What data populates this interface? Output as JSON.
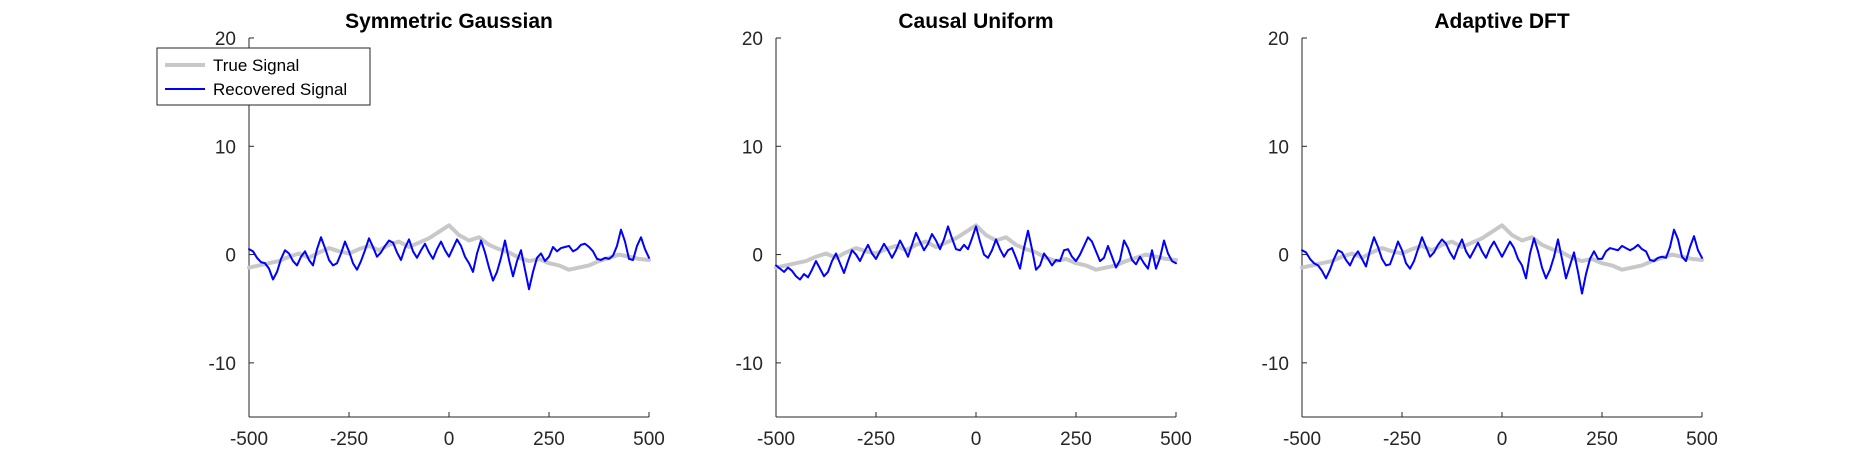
{
  "chart_data": [
    {
      "type": "line",
      "title": "Symmetric Gaussian",
      "xlim": [
        -500,
        500
      ],
      "ylim": [
        -15,
        20
      ],
      "xticks": [
        -500,
        -250,
        0,
        250,
        500
      ],
      "yticks": [
        -10,
        0,
        10,
        20
      ],
      "grid": false,
      "legend": "top-left",
      "series": [
        {
          "name": "True Signal",
          "color": "#c8c8c8",
          "x": [
            -500,
            -475,
            -450,
            -425,
            -400,
            -375,
            -350,
            -325,
            -300,
            -275,
            -250,
            -225,
            -200,
            -175,
            -150,
            -125,
            -100,
            -75,
            -50,
            -25,
            0,
            25,
            50,
            75,
            100,
            125,
            150,
            175,
            200,
            225,
            250,
            275,
            300,
            325,
            350,
            375,
            400,
            425,
            450,
            475,
            500
          ],
          "y": [
            -1.2,
            -1.0,
            -0.8,
            -0.6,
            -0.2,
            0.1,
            -0.3,
            0.2,
            0.6,
            0.3,
            0.1,
            0.5,
            0.8,
            0.4,
            0.9,
            1.2,
            0.7,
            1.1,
            1.5,
            2.1,
            2.7,
            1.8,
            1.3,
            1.6,
            0.9,
            0.5,
            0.2,
            -0.3,
            -0.6,
            -0.4,
            -0.8,
            -1.0,
            -1.4,
            -1.2,
            -1.0,
            -0.6,
            -0.3,
            0.0,
            -0.2,
            -0.4,
            -0.5
          ]
        },
        {
          "name": "Recovered Signal",
          "color": "#0000ff",
          "x": [
            -500,
            -490,
            -480,
            -470,
            -460,
            -450,
            -440,
            -430,
            -420,
            -410,
            -400,
            -390,
            -380,
            -370,
            -360,
            -350,
            -340,
            -330,
            -320,
            -310,
            -300,
            -290,
            -280,
            -270,
            -260,
            -250,
            -240,
            -230,
            -220,
            -210,
            -200,
            -190,
            -180,
            -170,
            -160,
            -150,
            -140,
            -130,
            -120,
            -110,
            -100,
            -90,
            -80,
            -70,
            -60,
            -50,
            -40,
            -30,
            -20,
            -10,
            0,
            10,
            20,
            30,
            40,
            50,
            60,
            70,
            80,
            90,
            100,
            110,
            120,
            130,
            140,
            150,
            160,
            170,
            180,
            190,
            200,
            210,
            220,
            230,
            240,
            250,
            260,
            270,
            280,
            290,
            300,
            310,
            320,
            330,
            340,
            350,
            360,
            370,
            380,
            390,
            400,
            410,
            420,
            430,
            440,
            450,
            460,
            470,
            480,
            490,
            500
          ],
          "y": [
            0.5,
            0.3,
            -0.3,
            -0.7,
            -0.8,
            -1.3,
            -2.3,
            -1.6,
            -0.4,
            0.4,
            0.1,
            -0.6,
            -1.0,
            -0.2,
            0.3,
            -0.5,
            -1.0,
            0.5,
            1.6,
            0.6,
            -0.5,
            -1.0,
            -0.8,
            0.1,
            1.2,
            0.3,
            -0.8,
            -1.4,
            -0.6,
            0.4,
            1.5,
            0.7,
            -0.2,
            0.2,
            0.8,
            1.3,
            1.1,
            0.2,
            -0.5,
            0.6,
            1.4,
            0.3,
            -0.3,
            0.4,
            1.0,
            0.2,
            -0.4,
            0.5,
            1.2,
            0.4,
            -0.2,
            0.6,
            1.4,
            0.8,
            -0.2,
            -0.8,
            -1.6,
            0.1,
            1.3,
            0.2,
            -1.2,
            -2.4,
            -1.6,
            -0.3,
            1.3,
            -0.5,
            -2.0,
            -0.6,
            0.4,
            -1.4,
            -3.2,
            -1.6,
            -0.3,
            0.1,
            -0.6,
            -0.2,
            0.7,
            0.3,
            0.6,
            0.7,
            0.8,
            0.3,
            0.5,
            0.9,
            1.0,
            0.7,
            0.3,
            -0.4,
            -0.5,
            -0.3,
            -0.4,
            -0.1,
            0.8,
            2.3,
            1.2,
            -0.4,
            -0.5,
            0.8,
            1.6,
            0.5,
            -0.3
          ]
        }
      ]
    },
    {
      "type": "line",
      "title": "Causal Uniform",
      "xlim": [
        -500,
        500
      ],
      "ylim": [
        -15,
        20
      ],
      "xticks": [
        -500,
        -250,
        0,
        250,
        500
      ],
      "yticks": [
        -10,
        0,
        10,
        20
      ],
      "grid": false,
      "series": [
        {
          "name": "True Signal",
          "color": "#c8c8c8",
          "x": [
            -500,
            -475,
            -450,
            -425,
            -400,
            -375,
            -350,
            -325,
            -300,
            -275,
            -250,
            -225,
            -200,
            -175,
            -150,
            -125,
            -100,
            -75,
            -50,
            -25,
            0,
            25,
            50,
            75,
            100,
            125,
            150,
            175,
            200,
            225,
            250,
            275,
            300,
            325,
            350,
            375,
            400,
            425,
            450,
            475,
            500
          ],
          "y": [
            -1.2,
            -1.0,
            -0.8,
            -0.6,
            -0.2,
            0.1,
            -0.3,
            0.2,
            0.6,
            0.3,
            0.1,
            0.5,
            0.8,
            0.4,
            0.9,
            1.2,
            0.7,
            1.1,
            1.5,
            2.1,
            2.7,
            1.8,
            1.3,
            1.6,
            0.9,
            0.5,
            0.2,
            -0.3,
            -0.6,
            -0.4,
            -0.8,
            -1.0,
            -1.4,
            -1.2,
            -1.0,
            -0.6,
            -0.3,
            0.0,
            -0.2,
            -0.4,
            -0.5
          ]
        },
        {
          "name": "Recovered Signal",
          "color": "#0000ff",
          "x": [
            -500,
            -490,
            -480,
            -470,
            -460,
            -450,
            -440,
            -430,
            -420,
            -410,
            -400,
            -390,
            -380,
            -370,
            -360,
            -350,
            -340,
            -330,
            -320,
            -310,
            -300,
            -290,
            -280,
            -270,
            -260,
            -250,
            -240,
            -230,
            -220,
            -210,
            -200,
            -190,
            -180,
            -170,
            -160,
            -150,
            -140,
            -130,
            -120,
            -110,
            -100,
            -90,
            -80,
            -70,
            -60,
            -50,
            -40,
            -30,
            -20,
            -10,
            0,
            10,
            20,
            30,
            40,
            50,
            60,
            70,
            80,
            90,
            100,
            110,
            120,
            130,
            140,
            150,
            160,
            170,
            180,
            190,
            200,
            210,
            220,
            230,
            240,
            250,
            260,
            270,
            280,
            290,
            300,
            310,
            320,
            330,
            340,
            350,
            360,
            370,
            380,
            390,
            400,
            410,
            420,
            430,
            440,
            450,
            460,
            470,
            480,
            490,
            500
          ],
          "y": [
            -1.0,
            -1.3,
            -1.6,
            -1.2,
            -1.5,
            -2.0,
            -2.3,
            -1.8,
            -2.1,
            -1.4,
            -0.6,
            -1.3,
            -2.0,
            -1.6,
            -0.6,
            0.1,
            -0.8,
            -1.7,
            -0.6,
            0.4,
            0.0,
            -0.6,
            0.2,
            0.9,
            0.1,
            -0.4,
            0.3,
            1.0,
            0.4,
            -0.3,
            0.4,
            1.3,
            0.6,
            -0.2,
            0.9,
            2.0,
            1.2,
            0.4,
            1.0,
            1.9,
            1.3,
            0.5,
            1.4,
            2.6,
            1.5,
            0.5,
            0.4,
            0.9,
            0.5,
            1.5,
            2.6,
            1.2,
            0.0,
            -0.3,
            0.4,
            1.4,
            0.5,
            -0.2,
            0.4,
            0.6,
            -0.3,
            -1.3,
            0.6,
            2.2,
            0.5,
            -1.4,
            -1.0,
            0.1,
            -0.4,
            -1.0,
            -0.5,
            -0.6,
            0.4,
            0.5,
            -0.2,
            -0.6,
            0.0,
            0.8,
            1.6,
            1.2,
            0.3,
            -0.6,
            -0.3,
            0.8,
            -0.2,
            -1.2,
            -0.5,
            1.3,
            0.6,
            -0.5,
            -0.9,
            -0.2,
            -0.8,
            -1.3,
            0.4,
            -1.3,
            -0.3,
            1.3,
            0.1,
            -0.6,
            -0.8
          ]
        }
      ]
    },
    {
      "type": "line",
      "title": "Adaptive DFT",
      "xlim": [
        -500,
        500
      ],
      "ylim": [
        -15,
        20
      ],
      "xticks": [
        -500,
        -250,
        0,
        250,
        500
      ],
      "yticks": [
        -10,
        0,
        10,
        20
      ],
      "grid": false,
      "series": [
        {
          "name": "True Signal",
          "color": "#c8c8c8",
          "x": [
            -500,
            -475,
            -450,
            -425,
            -400,
            -375,
            -350,
            -325,
            -300,
            -275,
            -250,
            -225,
            -200,
            -175,
            -150,
            -125,
            -100,
            -75,
            -50,
            -25,
            0,
            25,
            50,
            75,
            100,
            125,
            150,
            175,
            200,
            225,
            250,
            275,
            300,
            325,
            350,
            375,
            400,
            425,
            450,
            475,
            500
          ],
          "y": [
            -1.2,
            -1.0,
            -0.8,
            -0.6,
            -0.2,
            0.1,
            -0.3,
            0.2,
            0.6,
            0.3,
            0.1,
            0.5,
            0.8,
            0.4,
            0.9,
            1.2,
            0.7,
            1.1,
            1.5,
            2.1,
            2.7,
            1.8,
            1.3,
            1.6,
            0.9,
            0.5,
            0.2,
            -0.3,
            -0.6,
            -0.4,
            -0.8,
            -1.0,
            -1.4,
            -1.2,
            -1.0,
            -0.6,
            -0.3,
            0.0,
            -0.2,
            -0.4,
            -0.5
          ]
        },
        {
          "name": "Recovered Signal",
          "color": "#0000ff",
          "x": [
            -500,
            -490,
            -480,
            -470,
            -460,
            -450,
            -440,
            -430,
            -420,
            -410,
            -400,
            -390,
            -380,
            -370,
            -360,
            -350,
            -340,
            -330,
            -320,
            -310,
            -300,
            -290,
            -280,
            -270,
            -260,
            -250,
            -240,
            -230,
            -220,
            -210,
            -200,
            -190,
            -180,
            -170,
            -160,
            -150,
            -140,
            -130,
            -120,
            -110,
            -100,
            -90,
            -80,
            -70,
            -60,
            -50,
            -40,
            -30,
            -20,
            -10,
            0,
            10,
            20,
            30,
            40,
            50,
            60,
            70,
            80,
            90,
            100,
            110,
            120,
            130,
            140,
            150,
            160,
            170,
            180,
            190,
            200,
            210,
            220,
            230,
            240,
            250,
            260,
            270,
            280,
            290,
            300,
            310,
            320,
            330,
            340,
            350,
            360,
            370,
            380,
            390,
            400,
            410,
            420,
            430,
            440,
            450,
            460,
            470,
            480,
            490,
            500
          ],
          "y": [
            0.4,
            0.2,
            -0.4,
            -0.8,
            -1.0,
            -1.5,
            -2.2,
            -1.4,
            -0.4,
            0.4,
            0.2,
            -0.5,
            -1.0,
            -0.2,
            0.3,
            -0.4,
            -1.1,
            0.4,
            1.6,
            0.7,
            -0.4,
            -1.0,
            -0.9,
            0.1,
            1.2,
            0.4,
            -0.8,
            -1.3,
            -0.6,
            0.5,
            1.6,
            0.7,
            -0.2,
            0.2,
            0.9,
            1.4,
            1.0,
            0.2,
            -0.4,
            0.6,
            1.4,
            0.3,
            -0.3,
            0.4,
            1.1,
            0.3,
            -0.3,
            0.6,
            1.2,
            0.5,
            -0.2,
            0.5,
            1.2,
            0.6,
            -0.4,
            -1.0,
            -2.2,
            0.1,
            1.5,
            0.3,
            -1.2,
            -2.2,
            -1.4,
            -0.2,
            1.4,
            -0.4,
            -2.2,
            -1.0,
            0.2,
            -1.6,
            -3.6,
            -1.8,
            -0.4,
            0.3,
            -0.4,
            -0.4,
            0.3,
            0.6,
            0.5,
            0.4,
            0.8,
            0.6,
            0.4,
            0.6,
            0.9,
            0.5,
            0.3,
            -0.5,
            -0.6,
            -0.3,
            -0.2,
            -0.3,
            0.7,
            2.3,
            1.4,
            -0.2,
            -0.6,
            0.7,
            1.7,
            0.4,
            -0.3
          ]
        }
      ]
    }
  ]
}
